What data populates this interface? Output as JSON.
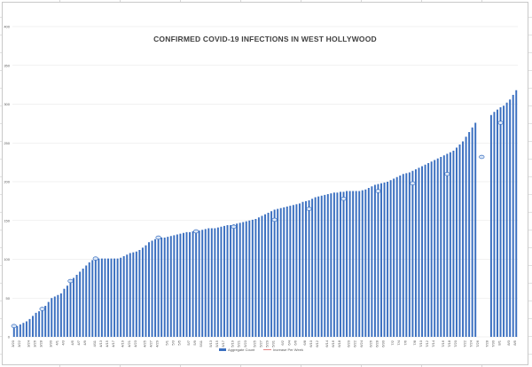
{
  "chart_data": {
    "type": "bar",
    "title": "CONFIRMED COVID-19 INFECTIONS IN WEST HOLLYWOOD",
    "ylim": [
      0,
      400
    ],
    "y_ticks": [
      "0",
      "50",
      "100",
      "150",
      "200",
      "250",
      "300",
      "350",
      "400"
    ],
    "grid": true,
    "legend_position": "bottom",
    "legend": [
      "Aggregate Count",
      "Increase Per Week"
    ],
    "colors": {
      "bars": "#3a6fc0",
      "markers": "#3a6fc0",
      "line": "#e06666",
      "grid": "#e4e4e4"
    },
    "series": [
      {
        "name": "Aggregate Count",
        "values": [
          14,
          14,
          16,
          18,
          20,
          23,
          27,
          31,
          33,
          36,
          40,
          45,
          50,
          52,
          54,
          56,
          62,
          66,
          72,
          76,
          80,
          84,
          88,
          92,
          96,
          99,
          100,
          101,
          101,
          101,
          101,
          101,
          101,
          101,
          102,
          104,
          106,
          108,
          109,
          110,
          112,
          115,
          118,
          122,
          124,
          126,
          128,
          128,
          128,
          129,
          130,
          131,
          132,
          133,
          134,
          135,
          135,
          136,
          136,
          137,
          138,
          139,
          140,
          140,
          140,
          141,
          142,
          143,
          144,
          144,
          145,
          146,
          147,
          148,
          149,
          150,
          151,
          152,
          154,
          156,
          158,
          160,
          162,
          164,
          165,
          166,
          167,
          168,
          169,
          170,
          171,
          172,
          174,
          175,
          176,
          178,
          180,
          181,
          182,
          183,
          184,
          185,
          186,
          186,
          187,
          187,
          188,
          188,
          188,
          188,
          188,
          189,
          190,
          192,
          194,
          196,
          197,
          198,
          199,
          200,
          202,
          204,
          206,
          208,
          210,
          211,
          212,
          214,
          216,
          218,
          220,
          222,
          224,
          226,
          228,
          230,
          232,
          234,
          236,
          238,
          240,
          244,
          248,
          252,
          258,
          264,
          270,
          276,
          null,
          null,
          null,
          null,
          286,
          290,
          293,
          296,
          298,
          302,
          306,
          312,
          318
        ]
      },
      {
        "name": "Increase Per Week",
        "values": [
          14,
          null,
          null,
          null,
          null,
          null,
          null,
          null,
          null,
          36,
          null,
          null,
          null,
          null,
          null,
          null,
          null,
          null,
          72,
          null,
          null,
          null,
          null,
          null,
          null,
          null,
          101,
          null,
          null,
          null,
          null,
          null,
          null,
          null,
          null,
          null,
          null,
          null,
          null,
          null,
          null,
          null,
          null,
          null,
          null,
          null,
          128,
          null,
          null,
          null,
          null,
          null,
          null,
          null,
          null,
          null,
          null,
          null,
          136,
          null,
          null,
          null,
          null,
          null,
          null,
          null,
          null,
          null,
          null,
          null,
          142,
          null,
          null,
          null,
          null,
          null,
          null,
          null,
          null,
          null,
          null,
          null,
          null,
          151,
          null,
          null,
          null,
          null,
          null,
          null,
          null,
          null,
          null,
          null,
          165,
          null,
          null,
          null,
          null,
          null,
          null,
          null,
          null,
          null,
          null,
          178,
          null,
          null,
          null,
          null,
          null,
          null,
          null,
          null,
          null,
          null,
          188,
          null,
          null,
          null,
          null,
          null,
          null,
          null,
          null,
          null,
          null,
          198,
          null,
          null,
          null,
          null,
          null,
          null,
          null,
          null,
          null,
          null,
          210,
          null,
          null,
          null,
          null,
          null,
          null,
          null,
          null,
          null,
          null,
          232,
          null,
          null,
          null,
          null,
          null,
          276,
          null,
          null,
          null,
          null,
          null,
          null,
          null,
          null,
          null,
          null,
          null
        ]
      }
    ],
    "x_tick_labels": [
      "3/20",
      "3/22",
      "3/24",
      "3/26",
      "3/28",
      "3/30",
      "4/1",
      "4/3",
      "4/5",
      "4/7",
      "4/9",
      "4/11",
      "4/13",
      "4/15",
      "4/17",
      "4/19",
      "4/21",
      "4/23",
      "4/25",
      "4/27",
      "4/29",
      "5/1",
      "5/3",
      "5/5",
      "5/7",
      "5/9",
      "5/11",
      "5/13",
      "5/15",
      "5/17",
      "5/19",
      "5/21",
      "5/23",
      "5/25",
      "5/27",
      "5/29",
      "5/31",
      "6/2",
      "6/4",
      "6/6",
      "6/8",
      "6/10",
      "6/12",
      "6/14",
      "6/16",
      "6/18",
      "6/20",
      "6/22",
      "6/24",
      "6/26",
      "6/28",
      "6/30",
      "7/2",
      "7/4",
      "7/6",
      "7/8",
      "7/10",
      "7/12",
      "7/14",
      "7/16",
      "7/18",
      "7/20",
      "7/22",
      "7/24",
      "7/26",
      "7/28",
      "7/30",
      "8/1",
      "8/3",
      "8/5"
    ]
  }
}
